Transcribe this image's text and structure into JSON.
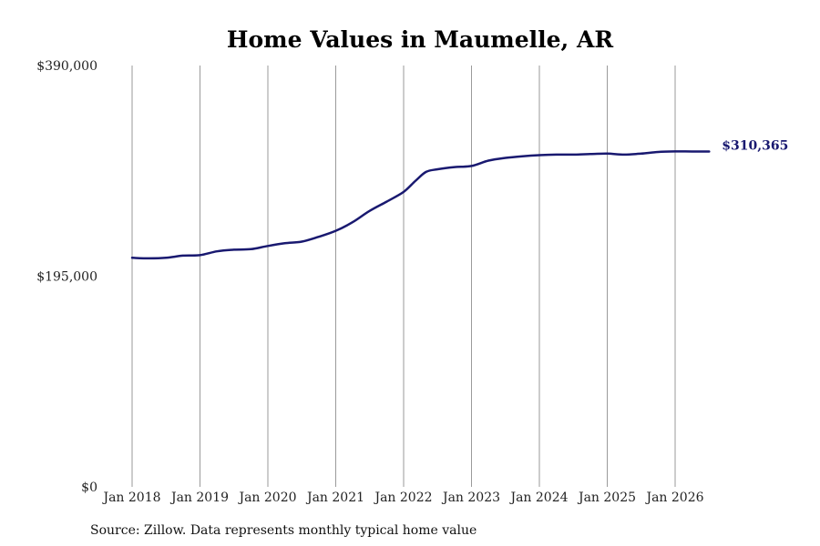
{
  "chart_data": {
    "type": "line",
    "title": "Home Values in Maumelle, AR",
    "xlabel": "",
    "ylabel": "",
    "y_ticks": [
      "$390,000",
      "$195,000",
      "$0"
    ],
    "y_tick_values": [
      390000,
      195000,
      0
    ],
    "ylim": [
      0,
      390000
    ],
    "x_ticks": [
      "Jan 2018",
      "Jan 2019",
      "Jan 2020",
      "Jan 2021",
      "Jan 2022",
      "Jan 2023",
      "Jan 2024",
      "Jan 2025",
      "Jan 2026"
    ],
    "x_tick_values": [
      2018,
      2019,
      2020,
      2021,
      2022,
      2023,
      2024,
      2025,
      2026
    ],
    "xlim": [
      2018,
      2026.5
    ],
    "grid": "vertical",
    "series": [
      {
        "x": [
          2018.0,
          2018.25,
          2018.5,
          2018.75,
          2019.0,
          2019.25,
          2019.5,
          2019.75,
          2020.0,
          2020.25,
          2020.5,
          2020.75,
          2021.0,
          2021.25,
          2021.5,
          2021.75,
          2022.0,
          2022.17,
          2022.33,
          2022.5,
          2022.75,
          2023.0,
          2023.25,
          2023.5,
          2023.75,
          2024.0,
          2024.25,
          2024.5,
          2024.75,
          2025.0,
          2025.25,
          2025.5,
          2025.75,
          2026.0,
          2026.25,
          2026.5
        ],
        "values": [
          212000,
          211500,
          212000,
          214000,
          214500,
          218000,
          219500,
          220000,
          223000,
          225500,
          227000,
          231500,
          237000,
          245000,
          255500,
          264000,
          273000,
          283000,
          291500,
          294000,
          296000,
          297000,
          302000,
          304500,
          306000,
          307000,
          307500,
          307500,
          308000,
          308500,
          307500,
          308500,
          310000,
          310500,
          310365,
          310365
        ]
      }
    ],
    "line_color": "#191970",
    "end_label": "$310,365",
    "source": "Source: Zillow. Data represents monthly typical home value"
  }
}
